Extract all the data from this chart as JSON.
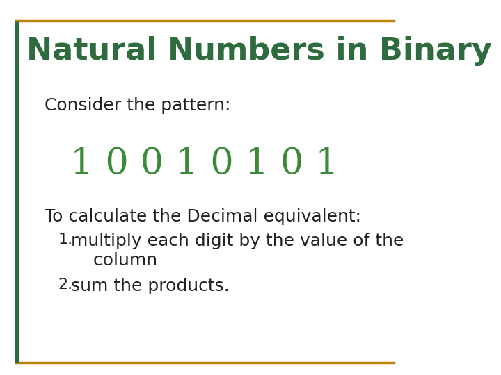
{
  "title": "Natural Numbers in Binary",
  "title_color": "#2E6B3E",
  "title_fontsize": 32,
  "background_color": "#FFFFFF",
  "border_color": "#B8860B",
  "border_left_color": "#2E6B3E",
  "consider_text": "Consider the pattern:",
  "consider_fontsize": 18,
  "consider_color": "#222222",
  "binary_text": "1 0 0 1 0 1 0 1",
  "binary_fontsize": 38,
  "binary_color": "#3A8A3A",
  "decimal_label": "To calculate the Decimal equivalent:",
  "decimal_label_fontsize": 18,
  "decimal_label_color": "#222222",
  "list_items": [
    "multiply each digit by the value of the\n    column",
    "sum the products."
  ],
  "list_fontsize": 18,
  "list_color": "#222222"
}
